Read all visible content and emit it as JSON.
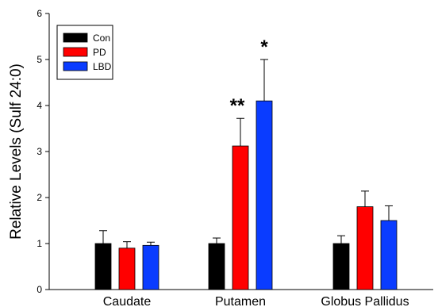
{
  "chart_data": {
    "type": "bar",
    "title": "",
    "xlabel": "",
    "ylabel": "Relative Levels (Sulf 24:0)",
    "ylim": [
      0,
      6
    ],
    "yticks": [
      0,
      1,
      2,
      3,
      4,
      5,
      6
    ],
    "categories": [
      "Caudate",
      "Putamen",
      "Globus Pallidus"
    ],
    "series": [
      {
        "name": "Con",
        "color": "#000000",
        "values": [
          1.0,
          1.0,
          1.0
        ],
        "errors": [
          0.28,
          0.12,
          0.17
        ]
      },
      {
        "name": "PD",
        "color": "#ff0000",
        "values": [
          0.9,
          3.12,
          1.8
        ],
        "errors": [
          0.14,
          0.6,
          0.34
        ]
      },
      {
        "name": "LBD",
        "color": "#0a3cff",
        "values": [
          0.96,
          4.1,
          1.5
        ],
        "errors": [
          0.07,
          0.9,
          0.32
        ]
      }
    ],
    "annotations": [
      {
        "text": "**",
        "category": 1,
        "series": 1
      },
      {
        "text": "*",
        "category": 1,
        "series": 2
      }
    ],
    "legend": {
      "position": "top-left",
      "entries": [
        "Con",
        "PD",
        "LBD"
      ]
    },
    "grid": false
  }
}
